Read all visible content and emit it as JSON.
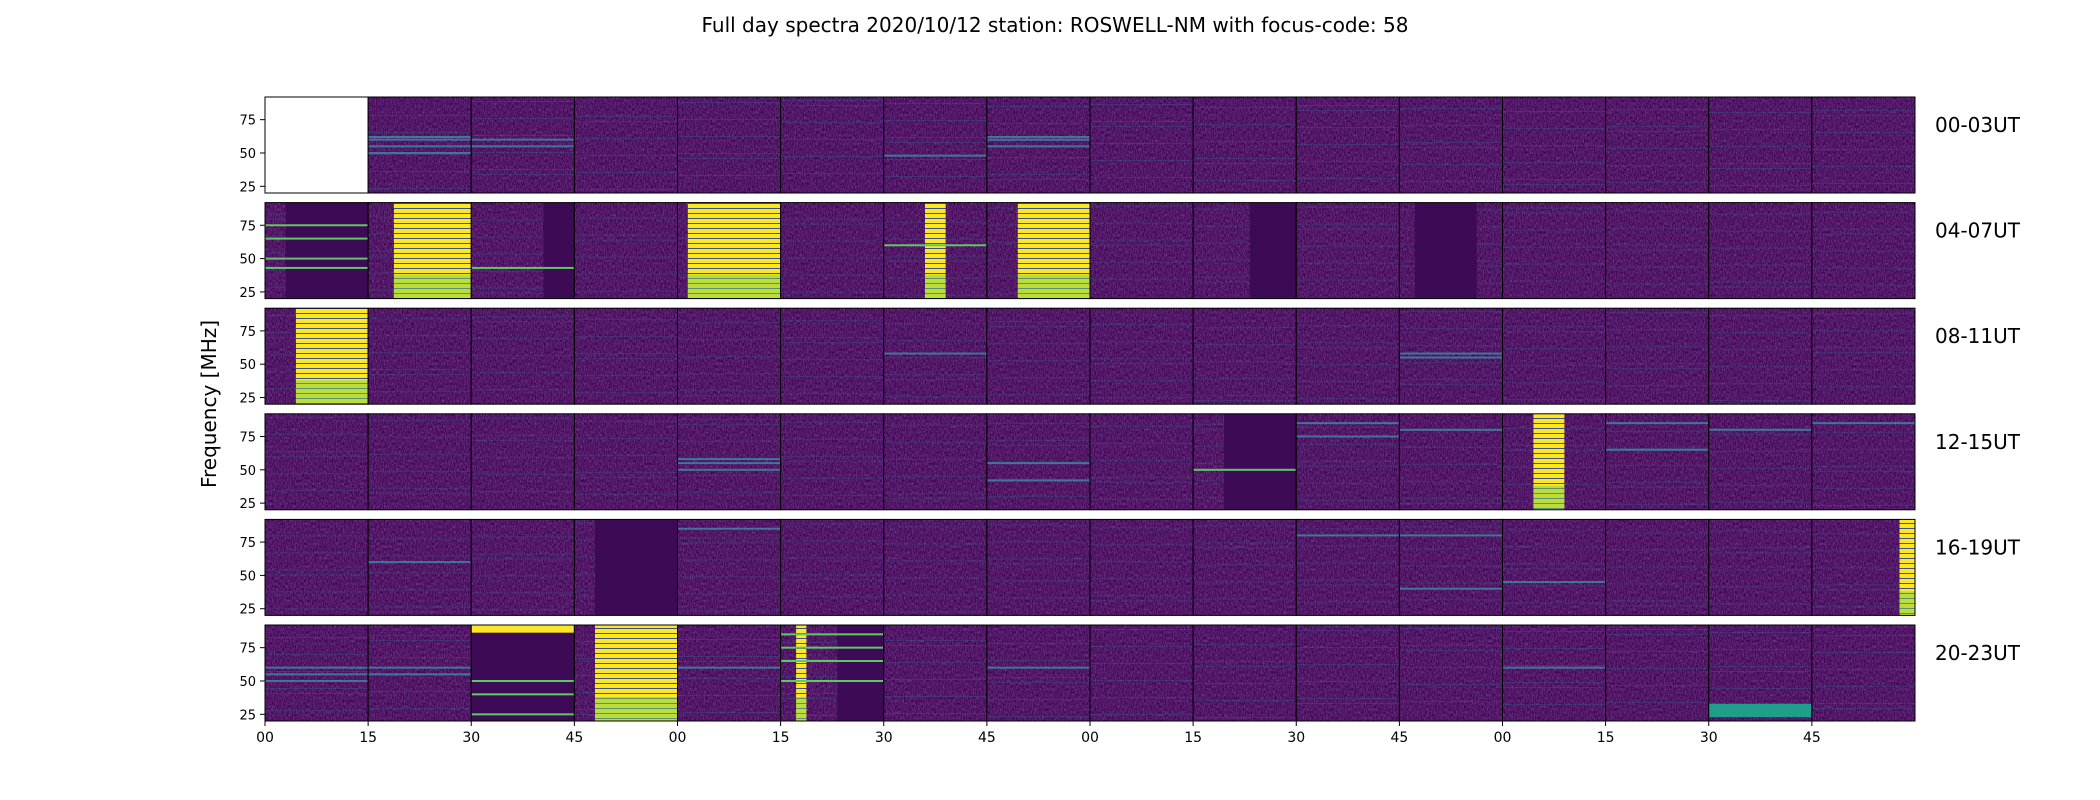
{
  "chart_data": {
    "type": "heatmap",
    "title": "Full day spectra 2020/10/12 station: ROSWELL-NM with focus-code: 58",
    "ylabel": "Frequency [MHz]",
    "xlabel": "",
    "ylim": [
      20,
      92
    ],
    "yticks": [
      25,
      50,
      75
    ],
    "xticks": [
      "00",
      "15",
      "30",
      "45",
      "00",
      "15",
      "30",
      "45",
      "00",
      "15",
      "30",
      "45",
      "00",
      "15",
      "30",
      "45"
    ],
    "rows": [
      {
        "label": "00-03UT",
        "panels": [
          {
            "empty": true
          },
          {
            "bands": [
              50,
              55,
              60,
              62
            ]
          },
          {
            "bands": [
              55,
              60
            ]
          },
          {},
          {},
          {},
          {
            "bands": [
              48
            ]
          },
          {
            "bands": [
              55,
              60,
              62
            ]
          },
          {},
          {},
          {},
          {},
          {},
          {},
          {},
          {}
        ]
      },
      {
        "label": "04-07UT",
        "panels": [
          {
            "dark": [
              0.2,
              1
            ],
            "lines": [
              43,
              50,
              65,
              75
            ]
          },
          {
            "bright": [
              0.25,
              1
            ]
          },
          {
            "dark": [
              0.7,
              1
            ],
            "lines": [
              43
            ]
          },
          {},
          {
            "bright": [
              0.1,
              1
            ]
          },
          {},
          {
            "bright": [
              0.4,
              0.6
            ],
            "lines": [
              60
            ]
          },
          {
            "bright": [
              0.3,
              1
            ]
          },
          {},
          {
            "dark": [
              0.55,
              1
            ]
          },
          {},
          {
            "dark": [
              0.15,
              0.75
            ]
          },
          {},
          {},
          {},
          {}
        ]
      },
      {
        "label": "08-11UT",
        "panels": [
          {
            "bright": [
              0.3,
              1
            ]
          },
          {},
          {},
          {},
          {},
          {},
          {
            "bands": [
              58
            ]
          },
          {},
          {},
          {},
          {},
          {
            "bands": [
              58,
              55
            ]
          },
          {},
          {},
          {},
          {}
        ]
      },
      {
        "label": "12-15UT",
        "panels": [
          {},
          {},
          {},
          {},
          {
            "bands": [
              50,
              55,
              58
            ]
          },
          {},
          {},
          {
            "bands": [
              55,
              42
            ]
          },
          {},
          {
            "dark": [
              0.3,
              1
            ],
            "lines": [
              50
            ]
          },
          {
            "bands": [
              85,
              75
            ]
          },
          {
            "bands": [
              80
            ]
          },
          {
            "bright": [
              0.3,
              0.6
            ]
          },
          {
            "bands": [
              85,
              65
            ]
          },
          {
            "bands": [
              80
            ]
          },
          {
            "bands": [
              85
            ]
          }
        ]
      },
      {
        "label": "16-19UT",
        "panels": [
          {},
          {
            "bands": [
              60
            ]
          },
          {},
          {
            "dark": [
              0.2,
              1
            ]
          },
          {
            "bands": [
              85
            ]
          },
          {},
          {},
          {},
          {},
          {},
          {
            "bands": [
              80
            ]
          },
          {
            "bands": [
              40,
              80
            ]
          },
          {
            "bands": [
              45
            ]
          },
          {},
          {},
          {
            "bright": [
              0.85,
              1
            ]
          }
        ]
      },
      {
        "label": "20-23UT",
        "panels": [
          {
            "bands": [
              50,
              55,
              60
            ]
          },
          {
            "bands": [
              55,
              60
            ]
          },
          {
            "bright_top": [
              0,
              1
            ],
            "dark": [
              0,
              1
            ],
            "lines": [
              50,
              40,
              25
            ]
          },
          {
            "bright": [
              0.2,
              1
            ]
          },
          {
            "bands": [
              60
            ]
          },
          {
            "dark": [
              0.55,
              1
            ],
            "bright": [
              0.15,
              0.25
            ],
            "lines": [
              85,
              75,
              65,
              50
            ]
          },
          {},
          {
            "bands": [
              60
            ]
          },
          {},
          {},
          {},
          {},
          {
            "bands": [
              60
            ]
          },
          {},
          {
            "bright_bottom": [
              0,
              1
            ]
          },
          {}
        ]
      }
    ],
    "colormap": {
      "low": "#440154",
      "mid": "#21918c",
      "high": "#fde725"
    }
  }
}
